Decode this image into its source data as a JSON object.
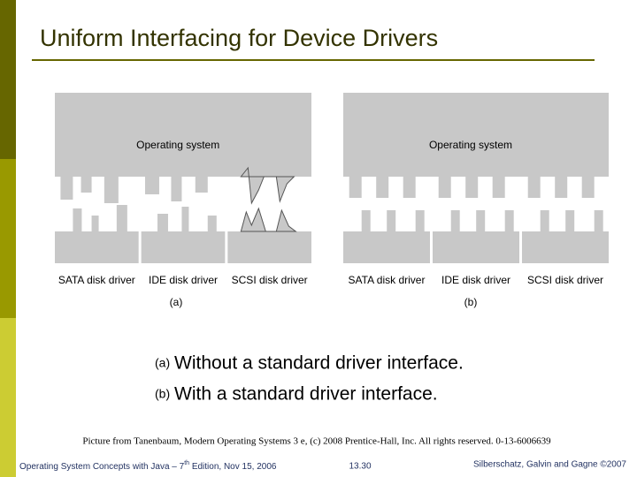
{
  "header": {
    "title": "Uniform Interfacing for Device Drivers"
  },
  "figure": {
    "panels": [
      {
        "os_label": "Operating system",
        "drivers": [
          "SATA disk driver",
          "IDE disk driver",
          "SCSI disk driver"
        ],
        "caption": "(a)"
      },
      {
        "os_label": "Operating system",
        "drivers": [
          "SATA disk driver",
          "IDE disk driver",
          "SCSI disk driver"
        ],
        "caption": "(b)"
      }
    ]
  },
  "list": [
    {
      "marker": "(a)",
      "text": "Without a standard driver interface."
    },
    {
      "marker": "(b)",
      "text": "With a standard driver interface."
    }
  ],
  "credit": "Picture from Tanenbaum, Modern Operating Systems 3 e, (c) 2008 Prentice-Hall, Inc. All rights reserved. 0-13-6006639",
  "footer": {
    "left": "Operating System Concepts with Java – 7",
    "left_sup": "th",
    "left_end": " Edition, Nov 15, 2006",
    "center": "13.30",
    "right": "Silberschatz, Galvin and Gagne ©2007"
  }
}
